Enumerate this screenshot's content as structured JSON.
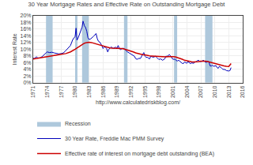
{
  "chart_data": {
    "type": "line",
    "title": "30 Year Mortgage Rates and Effective Rate on Outstanding Mortgage Debt",
    "x_label": "http://www.calculatedriskblog.com/",
    "y_label": "Interest Rate",
    "grid": true,
    "legend": "bottom",
    "xlim": [
      1971,
      2016
    ],
    "xticks": [
      1971,
      1974,
      1977,
      1980,
      1983,
      1986,
      1989,
      1992,
      1995,
      1998,
      2001,
      2004,
      2007,
      2010,
      2013,
      2016
    ],
    "ylim": [
      0,
      20
    ],
    "yticks": [
      {
        "value": 0,
        "label": "0%"
      },
      {
        "value": 2,
        "label": "2%"
      },
      {
        "value": 4,
        "label": "4%"
      },
      {
        "value": 6,
        "label": "6%"
      },
      {
        "value": 8,
        "label": "8%"
      },
      {
        "value": 10,
        "label": "10%"
      },
      {
        "value": 12,
        "label": "12%"
      },
      {
        "value": 14,
        "label": "14%"
      },
      {
        "value": 16,
        "label": "16%"
      },
      {
        "value": 18,
        "label": "18%"
      },
      {
        "value": 20,
        "label": "20%"
      }
    ],
    "recession_bands": {
      "name": "Recession",
      "color": "#aec8dc",
      "ranges": [
        [
          1973.75,
          1975.17
        ],
        [
          1980.0,
          1980.5
        ],
        [
          1981.5,
          1982.92
        ],
        [
          1990.5,
          1991.25
        ],
        [
          2001.25,
          2001.92
        ],
        [
          2007.92,
          2009.5
        ]
      ]
    },
    "series": [
      {
        "name": "30 Year Rate, Freddie Mac PMM Survey",
        "color": "#0000bb",
        "x": [
          1971.0,
          1971.25,
          1971.5,
          1971.75,
          1972.0,
          1972.5,
          1973.0,
          1973.5,
          1974.0,
          1974.5,
          1975.0,
          1975.5,
          1976.0,
          1976.5,
          1977.0,
          1977.5,
          1978.0,
          1978.5,
          1979.0,
          1979.5,
          1980.0,
          1980.2,
          1980.4,
          1980.6,
          1981.0,
          1981.3,
          1981.5,
          1981.7,
          1982.0,
          1982.25,
          1982.5,
          1982.75,
          1983.0,
          1983.25,
          1983.5,
          1983.75,
          1984.0,
          1984.25,
          1984.5,
          1984.75,
          1985.0,
          1985.25,
          1985.5,
          1985.75,
          1986.0,
          1986.25,
          1986.5,
          1986.75,
          1987.0,
          1987.25,
          1987.5,
          1987.75,
          1988.0,
          1988.25,
          1988.5,
          1988.75,
          1989.0,
          1989.25,
          1989.5,
          1989.75,
          1990.0,
          1990.25,
          1990.5,
          1990.75,
          1991.0,
          1991.25,
          1991.5,
          1991.75,
          1992.0,
          1992.25,
          1992.5,
          1992.75,
          1993.0,
          1993.25,
          1993.5,
          1993.75,
          1994.0,
          1994.25,
          1994.5,
          1994.75,
          1995.0,
          1995.25,
          1995.5,
          1995.75,
          1996.0,
          1996.25,
          1996.5,
          1996.75,
          1997.0,
          1997.25,
          1997.5,
          1997.75,
          1998.0,
          1998.25,
          1998.5,
          1998.75,
          1999.0,
          1999.25,
          1999.5,
          1999.75,
          2000.0,
          2000.25,
          2000.5,
          2000.75,
          2001.0,
          2001.25,
          2001.5,
          2001.75,
          2002.0,
          2002.25,
          2002.5,
          2002.75,
          2003.0,
          2003.25,
          2003.5,
          2003.75,
          2004.0,
          2004.25,
          2004.5,
          2004.75,
          2005.0,
          2005.25,
          2005.5,
          2005.75,
          2006.0,
          2006.25,
          2006.5,
          2006.75,
          2007.0,
          2007.25,
          2007.5,
          2007.75,
          2008.0,
          2008.25,
          2008.5,
          2008.75,
          2009.0,
          2009.25,
          2009.5,
          2009.75,
          2010.0,
          2010.25,
          2010.5,
          2010.75,
          2011.0,
          2011.25,
          2011.5,
          2011.75,
          2012.0,
          2012.25,
          2012.5,
          2012.75,
          2013.0,
          2013.25,
          2013.5
        ],
        "values": [
          7.31,
          7.2,
          7.6,
          7.7,
          7.4,
          7.4,
          7.9,
          8.5,
          9.2,
          9.0,
          9.1,
          8.9,
          8.7,
          8.6,
          8.7,
          8.9,
          9.6,
          10.3,
          11.1,
          12.9,
          13.8,
          16.3,
          12.7,
          13.2,
          14.8,
          16.0,
          16.6,
          18.4,
          17.0,
          16.5,
          15.4,
          13.5,
          12.9,
          13.0,
          13.4,
          13.6,
          13.9,
          14.3,
          14.7,
          13.2,
          12.4,
          12.2,
          11.7,
          11.1,
          10.2,
          10.7,
          10.6,
          10.2,
          9.2,
          10.0,
          10.3,
          10.7,
          10.4,
          10.3,
          10.5,
          10.6,
          10.3,
          11.1,
          10.2,
          9.9,
          10.1,
          10.3,
          10.2,
          9.7,
          9.5,
          9.2,
          9.0,
          8.7,
          8.4,
          8.3,
          8.1,
          7.9,
          7.2,
          7.0,
          7.1,
          7.3,
          7.2,
          7.8,
          8.4,
          9.0,
          7.9,
          7.6,
          7.6,
          7.4,
          7.1,
          7.9,
          7.8,
          7.6,
          7.7,
          7.9,
          7.6,
          7.2,
          6.9,
          7.1,
          7.0,
          6.7,
          7.0,
          7.1,
          7.9,
          7.9,
          8.1,
          8.4,
          8.0,
          7.6,
          7.0,
          7.0,
          7.0,
          6.6,
          6.5,
          6.7,
          6.5,
          6.1,
          5.8,
          5.7,
          6.2,
          6.0,
          5.8,
          6.3,
          6.0,
          5.7,
          5.9,
          5.9,
          5.8,
          6.2,
          6.2,
          6.6,
          6.7,
          6.4,
          6.3,
          6.4,
          6.7,
          6.5,
          6.1,
          6.1,
          6.4,
          6.1,
          5.0,
          5.0,
          5.2,
          4.9,
          5.1,
          5.1,
          4.5,
          4.3,
          4.9,
          4.7,
          4.3,
          4.0,
          3.9,
          3.9,
          3.6,
          3.5,
          3.5,
          3.6,
          4.5
        ]
      },
      {
        "name": "Effective rate of interest on mortgage debt outstanding (BEA)",
        "color": "#cc0000",
        "x": [
          1971.0,
          1972.0,
          1973.0,
          1974.0,
          1975.0,
          1976.0,
          1977.0,
          1978.0,
          1979.0,
          1980.0,
          1980.5,
          1981.0,
          1981.5,
          1982.0,
          1982.5,
          1983.0,
          1983.5,
          1984.0,
          1984.5,
          1985.0,
          1985.5,
          1986.0,
          1986.5,
          1987.0,
          1987.5,
          1988.0,
          1988.5,
          1989.0,
          1989.5,
          1990.0,
          1990.5,
          1991.0,
          1991.5,
          1992.0,
          1992.5,
          1993.0,
          1993.5,
          1994.0,
          1994.5,
          1995.0,
          1995.5,
          1996.0,
          1996.5,
          1997.0,
          1997.5,
          1998.0,
          1998.5,
          1999.0,
          1999.5,
          2000.0,
          2000.5,
          2001.0,
          2001.5,
          2002.0,
          2002.5,
          2003.0,
          2003.5,
          2004.0,
          2004.5,
          2005.0,
          2005.5,
          2006.0,
          2006.5,
          2007.0,
          2007.5,
          2008.0,
          2008.5,
          2009.0,
          2009.5,
          2010.0,
          2010.5,
          2011.0,
          2011.5,
          2012.0,
          2012.5,
          2013.0,
          2013.5
        ],
        "values": [
          7.1,
          7.35,
          7.6,
          7.9,
          8.1,
          8.4,
          8.5,
          8.7,
          9.2,
          10.0,
          10.5,
          11.0,
          11.5,
          11.8,
          12.0,
          12.1,
          12.0,
          11.8,
          11.6,
          11.4,
          11.2,
          11.0,
          10.7,
          10.5,
          10.4,
          10.3,
          10.3,
          10.3,
          10.3,
          10.2,
          10.1,
          9.9,
          9.7,
          9.5,
          9.2,
          8.9,
          8.7,
          8.5,
          8.4,
          8.3,
          8.1,
          8.0,
          7.95,
          7.9,
          7.85,
          7.8,
          7.75,
          7.7,
          7.7,
          7.8,
          7.85,
          7.8,
          7.7,
          7.5,
          7.3,
          7.0,
          6.7,
          6.5,
          6.35,
          6.25,
          6.2,
          6.2,
          6.3,
          6.4,
          6.45,
          6.4,
          6.3,
          6.1,
          5.9,
          5.7,
          5.5,
          5.3,
          5.15,
          5.0,
          4.9,
          4.85,
          5.7
        ]
      }
    ]
  }
}
